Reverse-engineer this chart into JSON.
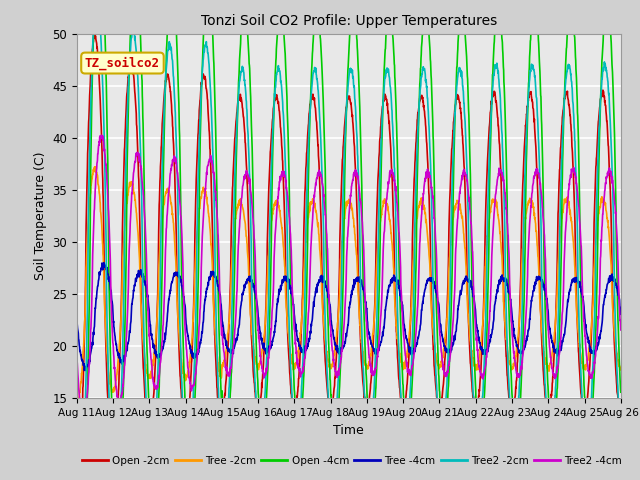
{
  "title": "Tonzi Soil CO2 Profile: Upper Temperatures",
  "xlabel": "Time",
  "ylabel": "Soil Temperature (C)",
  "ylim": [
    15,
    50
  ],
  "xlim": [
    0,
    15
  ],
  "xtick_labels": [
    "Aug 11",
    "Aug 12",
    "Aug 13",
    "Aug 14",
    "Aug 15",
    "Aug 16",
    "Aug 17",
    "Aug 18",
    "Aug 19",
    "Aug 20",
    "Aug 21",
    "Aug 22",
    "Aug 23",
    "Aug 24",
    "Aug 25",
    "Aug 26"
  ],
  "ytick_vals": [
    15,
    20,
    25,
    30,
    35,
    40,
    45,
    50
  ],
  "fig_bg_color": "#d0d0d0",
  "plot_bg_color": "#e8e8e8",
  "grid_color": "#ffffff",
  "annotation_text": "TZ_soilco2",
  "annotation_bg": "#ffffcc",
  "annotation_border": "#ccaa00",
  "series": [
    {
      "label": "Open -2cm",
      "color": "#cc0000",
      "max_amp": 17,
      "mid": 29,
      "phase": 0.0,
      "lag": 0.0
    },
    {
      "label": "Tree -2cm",
      "color": "#ff9900",
      "max_amp": 9,
      "mid": 26,
      "phase": 0.0,
      "lag": 0.0
    },
    {
      "label": "Open -4cm",
      "color": "#00cc00",
      "max_amp": 23,
      "mid": 32,
      "phase": 0.0,
      "lag": 0.12
    },
    {
      "label": "Tree -4cm",
      "color": "#0000bb",
      "max_amp": 4,
      "mid": 23,
      "phase": 0.0,
      "lag": 0.25
    },
    {
      "label": "Tree2 -2cm",
      "color": "#00bbbb",
      "max_amp": 20,
      "mid": 29,
      "phase": 0.0,
      "lag": 0.06
    },
    {
      "label": "Tree2 -4cm",
      "color": "#cc00cc",
      "max_amp": 11,
      "mid": 27,
      "phase": 0.0,
      "lag": 0.18
    }
  ],
  "n_days": 15,
  "points_per_day": 144
}
